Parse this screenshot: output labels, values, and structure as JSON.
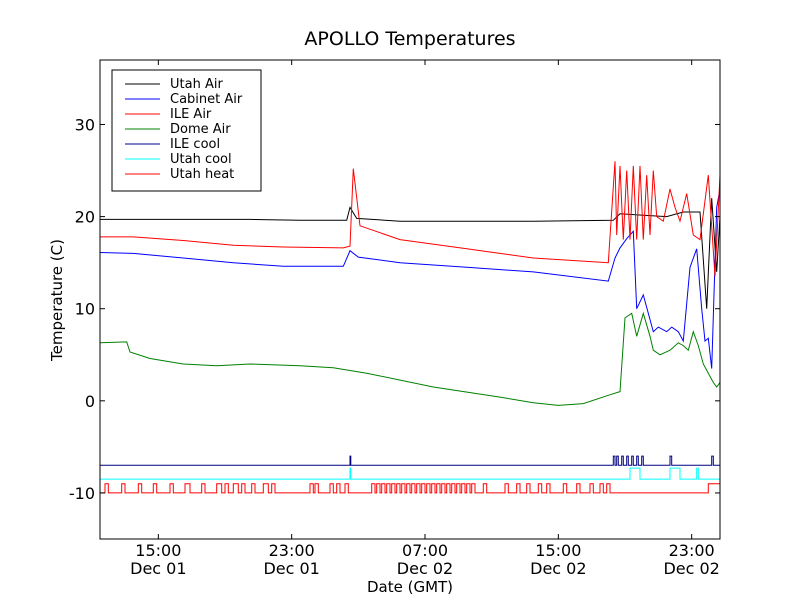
{
  "chart_data": {
    "type": "line",
    "title": "APOLLO Temperatures",
    "xlabel": "Date (GMT)",
    "ylabel": "Temperature (C)",
    "x_unit": "hours since Dec 01 11:00 GMT",
    "xlim": [
      0,
      37.2
    ],
    "ylim": [
      -15,
      37
    ],
    "grid": false,
    "legend_position": "top-left",
    "x_ticks": [
      {
        "x": 3.5,
        "time": "15:00",
        "date": "Dec 01"
      },
      {
        "x": 11.5,
        "time": "23:00",
        "date": "Dec 01"
      },
      {
        "x": 19.5,
        "time": "07:00",
        "date": "Dec 02"
      },
      {
        "x": 27.5,
        "time": "15:00",
        "date": "Dec 02"
      },
      {
        "x": 35.5,
        "time": "23:00",
        "date": "Dec 02"
      }
    ],
    "y_ticks": [
      {
        "value": 30,
        "label": "30"
      },
      {
        "value": 20,
        "label": "20"
      },
      {
        "value": 10,
        "label": "10"
      },
      {
        "value": 0,
        "label": "0"
      },
      {
        "value": -10,
        "label": "-10"
      }
    ],
    "series": [
      {
        "name": "Utah Air",
        "color": "#000000",
        "x": [
          0,
          3,
          6,
          9,
          12,
          14.8,
          15.0,
          15.4,
          18,
          22,
          26,
          30.8,
          31.2,
          34,
          35.0,
          36.0,
          36.4,
          36.7,
          37.0,
          37.2
        ],
        "y": [
          19.7,
          19.7,
          19.7,
          19.7,
          19.6,
          19.6,
          21.0,
          19.8,
          19.5,
          19.5,
          19.5,
          19.6,
          20.3,
          20.0,
          20.5,
          20.5,
          10.0,
          22.0,
          14.0,
          20.0
        ]
      },
      {
        "name": "Cabinet Air",
        "color": "#0000ff",
        "x": [
          0,
          2,
          5,
          8,
          11,
          14.6,
          15.0,
          15.5,
          18,
          22,
          26,
          30.5,
          30.9,
          31.2,
          31.6,
          32.0,
          32.2,
          32.6,
          32.9,
          33.2,
          33.5,
          34.0,
          34.3,
          34.7,
          35.0,
          35.4,
          35.8,
          36.1,
          36.3,
          36.5,
          36.7,
          37.0,
          37.2
        ],
        "y": [
          16.1,
          16.0,
          15.5,
          15.0,
          14.6,
          14.6,
          16.3,
          15.6,
          15.0,
          14.5,
          14.0,
          13.0,
          15.5,
          16.6,
          17.6,
          18.4,
          10.0,
          11.5,
          9.5,
          7.5,
          8.0,
          7.5,
          8.0,
          7.5,
          6.5,
          14.5,
          16.5,
          10.0,
          6.5,
          6.8,
          3.5,
          21.0,
          23.0
        ]
      },
      {
        "name": "ILE Air",
        "color": "#ff0000",
        "x": [
          0,
          2,
          5,
          8,
          11,
          14.6,
          15.0,
          15.2,
          15.6,
          18,
          22,
          26,
          30.5,
          30.9,
          31.0,
          31.2,
          31.4,
          31.6,
          31.8,
          32.0,
          32.2,
          32.4,
          32.6,
          32.8,
          33.0,
          33.2,
          33.4,
          33.8,
          34.2,
          34.5,
          34.8,
          35.2,
          35.6,
          36.0,
          36.5,
          36.9,
          37.2
        ],
        "y": [
          17.8,
          17.8,
          17.4,
          16.9,
          16.7,
          16.6,
          16.8,
          25.2,
          19.0,
          17.5,
          16.5,
          15.5,
          15.0,
          26.0,
          18.0,
          25.5,
          17.5,
          25.0,
          17.5,
          25.5,
          17.5,
          25.5,
          17.5,
          24.5,
          18.0,
          25.0,
          20.0,
          19.5,
          23.0,
          21.0,
          19.5,
          22.5,
          18.0,
          17.5,
          24.5,
          13.5,
          24.5
        ]
      },
      {
        "name": "Dome Air",
        "color": "#008000",
        "x": [
          0,
          1.6,
          1.8,
          3,
          5,
          7,
          9,
          12,
          14,
          16,
          20,
          24,
          26,
          27.5,
          29,
          30.5,
          31.2,
          31.5,
          31.9,
          32.2,
          32.6,
          33.0,
          33.2,
          33.6,
          34.2,
          34.7,
          35.0,
          35.3,
          35.6,
          35.9,
          36.2,
          36.5,
          36.8,
          37.0,
          37.2
        ],
        "y": [
          6.3,
          6.4,
          5.3,
          4.6,
          4.0,
          3.8,
          4.0,
          3.8,
          3.6,
          3.0,
          1.5,
          0.4,
          -0.2,
          -0.5,
          -0.3,
          0.6,
          1.0,
          9.0,
          9.5,
          7.0,
          9.5,
          7.0,
          5.5,
          5.0,
          5.5,
          6.3,
          6.0,
          5.5,
          7.5,
          6.0,
          4.0,
          3.0,
          2.0,
          1.5,
          2.0
        ]
      },
      {
        "name": "ILE cool",
        "color": "#000080",
        "x": [
          0,
          15.0,
          15.0,
          15.05,
          15.05,
          30.8,
          30.8,
          30.9,
          30.9,
          31.0,
          31.0,
          31.1,
          31.1,
          31.3,
          31.3,
          31.4,
          31.4,
          31.6,
          31.6,
          31.7,
          31.7,
          31.9,
          31.9,
          32.0,
          32.0,
          32.2,
          32.2,
          32.3,
          32.3,
          32.5,
          32.5,
          32.6,
          32.6,
          34.2,
          34.2,
          34.3,
          34.3,
          36.7,
          36.7,
          36.8,
          36.8,
          37.2
        ],
        "y": [
          -7.0,
          -7.0,
          -6.0,
          -6.0,
          -7.0,
          -7.0,
          -6.0,
          -6.0,
          -7.0,
          -7.0,
          -6.0,
          -6.0,
          -7.0,
          -7.0,
          -6.0,
          -6.0,
          -7.0,
          -7.0,
          -6.0,
          -6.0,
          -7.0,
          -7.0,
          -6.0,
          -6.0,
          -7.0,
          -7.0,
          -6.0,
          -6.0,
          -7.0,
          -7.0,
          -6.0,
          -6.0,
          -7.0,
          -7.0,
          -6.0,
          -6.0,
          -7.0,
          -7.0,
          -6.0,
          -6.0,
          -7.0,
          -7.0
        ]
      },
      {
        "name": "Utah cool",
        "color": "#00ffff",
        "x": [
          0,
          15.0,
          15.0,
          15.05,
          15.05,
          31.8,
          31.8,
          32.4,
          32.4,
          34.2,
          34.2,
          34.8,
          34.8,
          35.8,
          35.8,
          35.9,
          35.9,
          37.2
        ],
        "y": [
          -8.5,
          -8.5,
          -7.3,
          -7.3,
          -8.5,
          -8.5,
          -7.3,
          -7.3,
          -8.5,
          -8.5,
          -7.3,
          -7.3,
          -8.5,
          -8.5,
          -7.3,
          -7.3,
          -8.5,
          -8.5
        ]
      },
      {
        "name": "Utah heat",
        "color": "#ff0000",
        "x": [
          0,
          37.2
        ],
        "y": [
          -10.0,
          -10.0
        ],
        "pulse_base": -10.0,
        "pulse_top": -9.0,
        "pulses": [
          [
            0.3,
            0.5
          ],
          [
            1.3,
            1.5
          ],
          [
            2.3,
            2.5
          ],
          [
            3.2,
            3.4
          ],
          [
            4.2,
            4.4
          ],
          [
            5.1,
            5.4
          ],
          [
            6.1,
            6.3
          ],
          [
            7.0,
            7.3
          ],
          [
            7.5,
            7.7
          ],
          [
            8.0,
            8.3
          ],
          [
            8.5,
            8.7
          ],
          [
            9.1,
            9.3
          ],
          [
            9.8,
            10.1
          ],
          [
            10.3,
            10.5
          ],
          [
            12.6,
            12.8
          ],
          [
            12.9,
            13.1
          ],
          [
            13.8,
            14.0
          ],
          [
            14.2,
            14.4
          ],
          [
            14.7,
            14.9
          ],
          [
            16.3,
            16.5
          ],
          [
            16.6,
            16.8
          ],
          [
            16.9,
            17.1
          ],
          [
            17.2,
            17.4
          ],
          [
            17.5,
            17.7
          ],
          [
            17.8,
            18.0
          ],
          [
            18.1,
            18.3
          ],
          [
            18.4,
            18.6
          ],
          [
            18.7,
            18.9
          ],
          [
            19.0,
            19.2
          ],
          [
            19.3,
            19.5
          ],
          [
            19.6,
            19.8
          ],
          [
            19.9,
            20.1
          ],
          [
            20.2,
            20.4
          ],
          [
            20.5,
            20.7
          ],
          [
            20.8,
            21.0
          ],
          [
            21.1,
            21.3
          ],
          [
            21.4,
            21.6
          ],
          [
            21.7,
            21.9
          ],
          [
            22.0,
            22.2
          ],
          [
            22.3,
            22.5
          ],
          [
            23.0,
            23.2
          ],
          [
            24.3,
            24.5
          ],
          [
            25.0,
            25.2
          ],
          [
            25.6,
            25.8
          ],
          [
            26.3,
            26.5
          ],
          [
            26.8,
            27.0
          ],
          [
            27.8,
            28.0
          ],
          [
            28.6,
            28.8
          ],
          [
            29.4,
            29.6
          ],
          [
            30.0,
            30.2
          ],
          [
            30.4,
            30.6
          ],
          [
            36.5,
            37.2
          ]
        ]
      }
    ]
  }
}
